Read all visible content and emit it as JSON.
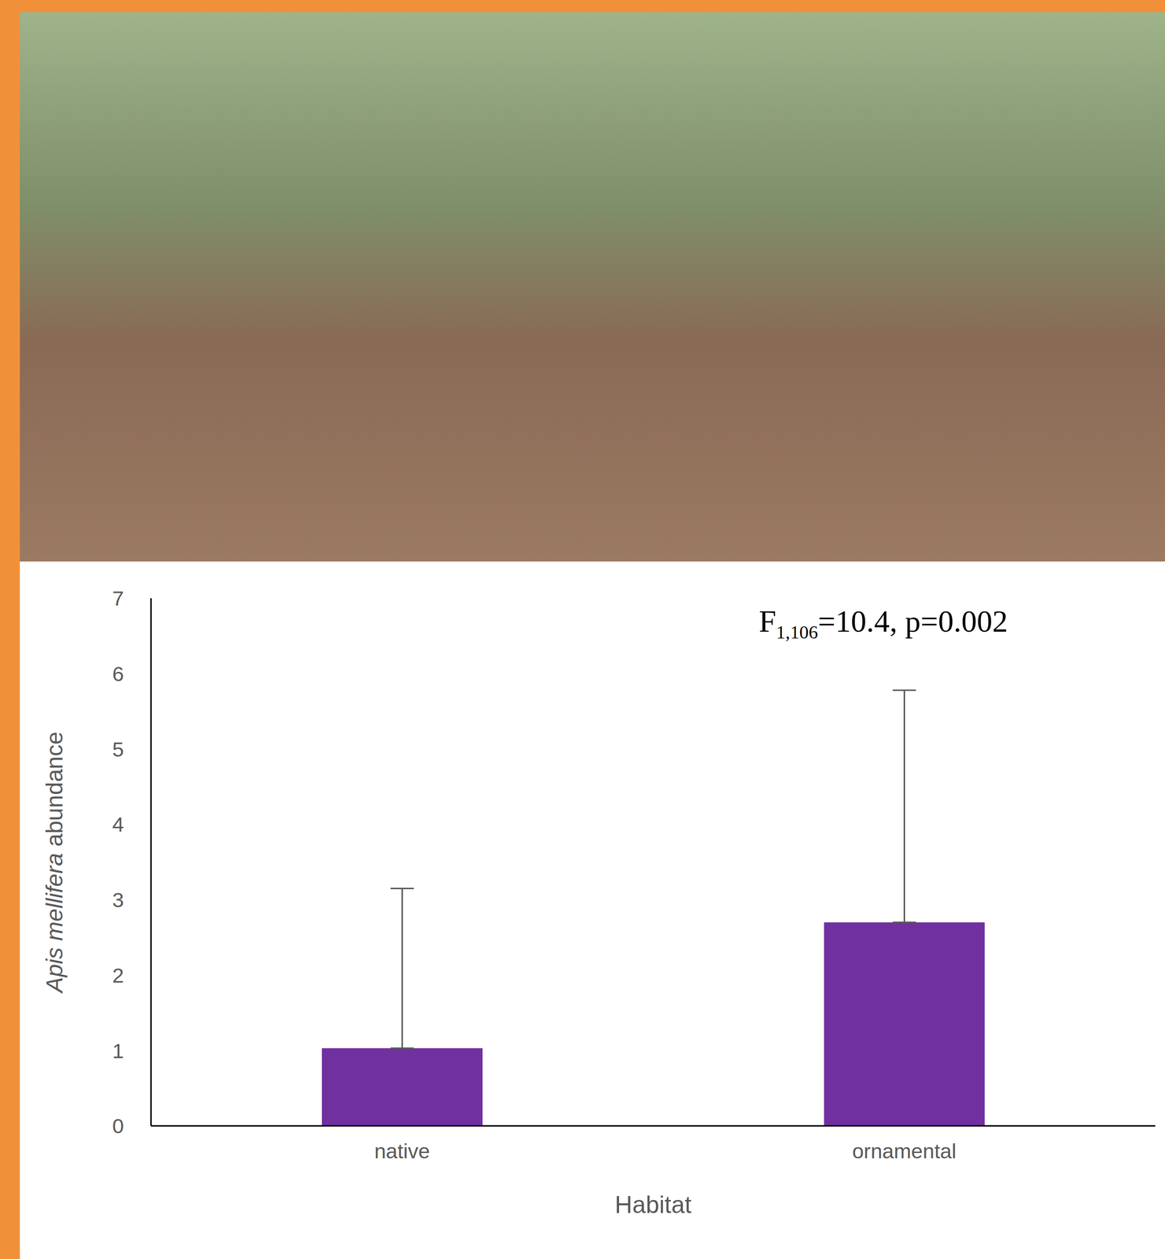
{
  "chart_data": {
    "type": "bar",
    "categories": [
      "native",
      "ornamental"
    ],
    "values": [
      1.03,
      2.7
    ],
    "errors": [
      2.12,
      3.08
    ],
    "color": "#7030a0",
    "x_label": "Habitat",
    "y_label": "Apis mellifera abundance",
    "annotation": "F1,106=10.4, p=0.002",
    "ylim": [
      0,
      7
    ],
    "yticks": [
      0,
      1,
      2,
      3,
      4,
      5,
      6,
      7
    ],
    "grid": false
  }
}
